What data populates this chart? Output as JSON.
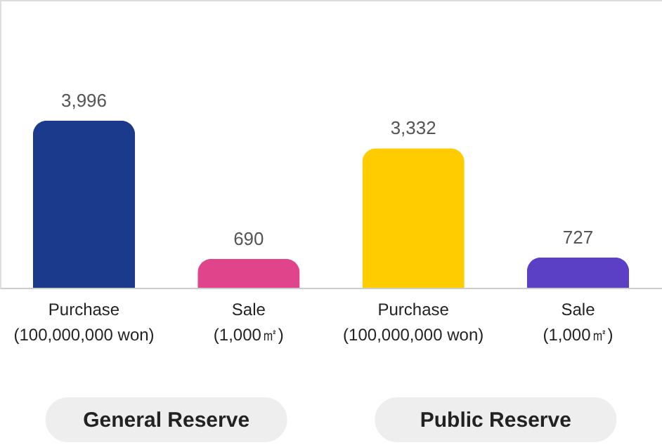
{
  "chart_data": {
    "type": "bar",
    "categories": [
      "Purchase\n(100,000,000 won)",
      "Sale\n(1,000㎡)",
      "Purchase\n(100,000,000 won)",
      "Sale\n(1,000㎡)"
    ],
    "values": [
      3996,
      690,
      3332,
      727
    ],
    "colors": [
      "#1c3a8c",
      "#e0458c",
      "#ffcc00",
      "#5b3fc4"
    ],
    "value_labels": [
      "3,996",
      "690",
      "3,332",
      "727"
    ],
    "annotations": [
      "General Reserve",
      "Public Reserve"
    ]
  }
}
